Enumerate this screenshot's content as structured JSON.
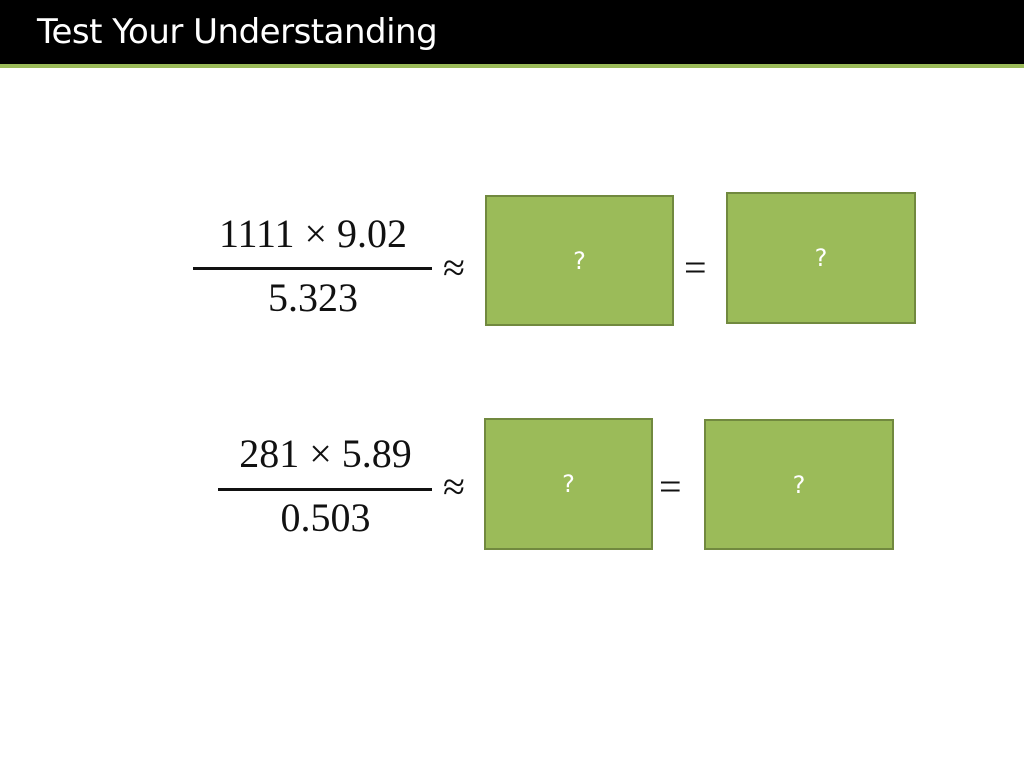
{
  "header": {
    "title": "Test Your Understanding"
  },
  "colors": {
    "header_bg": "#000000",
    "accent": "#9BBB59",
    "box_border": "#71893F"
  },
  "problems": [
    {
      "numerator": "1111 × 9.02",
      "denominator": "5.323",
      "approx": "≈",
      "equals": "=",
      "box1": "?",
      "box2": "?"
    },
    {
      "numerator": "281 × 5.89",
      "denominator": "0.503",
      "approx": "≈",
      "equals": "=",
      "box1": "?",
      "box2": "?"
    }
  ]
}
